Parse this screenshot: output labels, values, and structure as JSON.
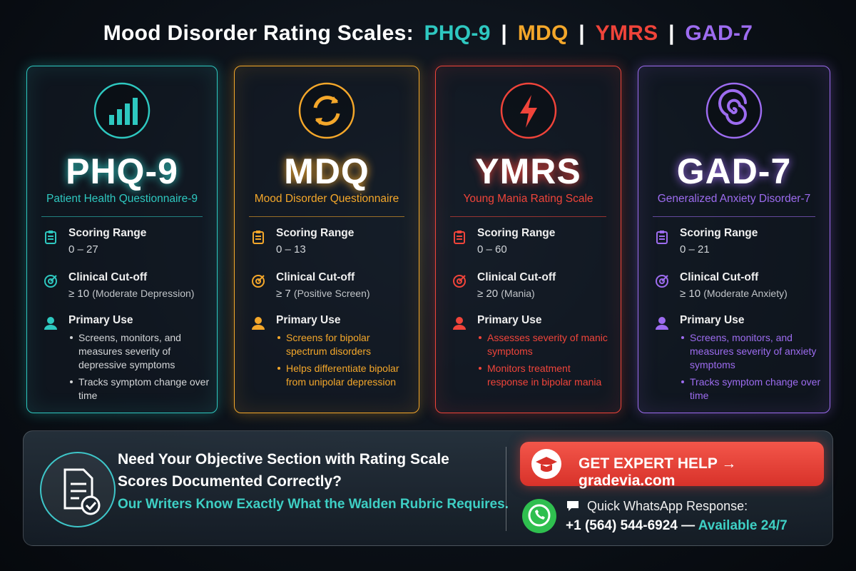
{
  "title": {
    "prefix": "Mood Disorder Rating Scales:",
    "separator": "|",
    "scales": [
      "PHQ-9",
      "MDQ",
      "YMRS",
      "GAD-7"
    ]
  },
  "cards": [
    {
      "name": "PHQ-9",
      "full_name": "Patient Health Questionnaire-9",
      "color": "#2ec8c0",
      "scoring_label": "Scoring Range",
      "scoring_value": "0 – 27",
      "cutoff_label": "Clinical Cut-off",
      "cutoff_value": "≥ 10",
      "cutoff_note": "(Moderate Depression)",
      "use_label": "Primary Use",
      "use_items": [
        "Screens, monitors, and measures severity of depressive symptoms",
        "Tracks symptom change over time"
      ]
    },
    {
      "name": "MDQ",
      "full_name": "Mood Disorder Questionnaire",
      "color": "#f4a72a",
      "scoring_label": "Scoring Range",
      "scoring_value": "0 – 13",
      "cutoff_label": "Clinical Cut-off",
      "cutoff_value": "≥ 7",
      "cutoff_note": "(Positive Screen)",
      "use_label": "Primary Use",
      "use_items": [
        "Screens for bipolar spectrum disorders",
        "Helps differentiate bipolar from unipolar depression"
      ]
    },
    {
      "name": "YMRS",
      "full_name": "Young Mania Rating Scale",
      "color": "#f0443a",
      "scoring_label": "Scoring Range",
      "scoring_value": "0 – 60",
      "cutoff_label": "Clinical Cut-off",
      "cutoff_value": "≥ 20",
      "cutoff_note": "(Mania)",
      "use_label": "Primary Use",
      "use_items": [
        "Assesses severity of manic symptoms",
        "Monitors treatment response in bipolar mania"
      ]
    },
    {
      "name": "GAD-7",
      "full_name": "Generalized Anxiety Disorder-7",
      "color": "#9d6cf0",
      "scoring_label": "Scoring Range",
      "scoring_value": "0 – 21",
      "cutoff_label": "Clinical Cut-off",
      "cutoff_value": "≥ 10",
      "cutoff_note": "(Moderate Anxiety)",
      "use_label": "Primary Use",
      "use_items": [
        "Screens, monitors, and measures severity of anxiety symptoms",
        "Tracks symptom change over time"
      ]
    }
  ],
  "cta": {
    "headline": "Need Your Objective Section with Rating Scale Scores Documented Correctly?",
    "subline": "Our Writers Know Exactly What the Walden Rubric Requires.",
    "button": "GET EXPERT HELP → gradevia.com",
    "whatsapp_label": "Quick WhatsApp Response:",
    "phone": "+1 (564) 544-6924",
    "dash": "—",
    "availability": "Available 24/7"
  }
}
